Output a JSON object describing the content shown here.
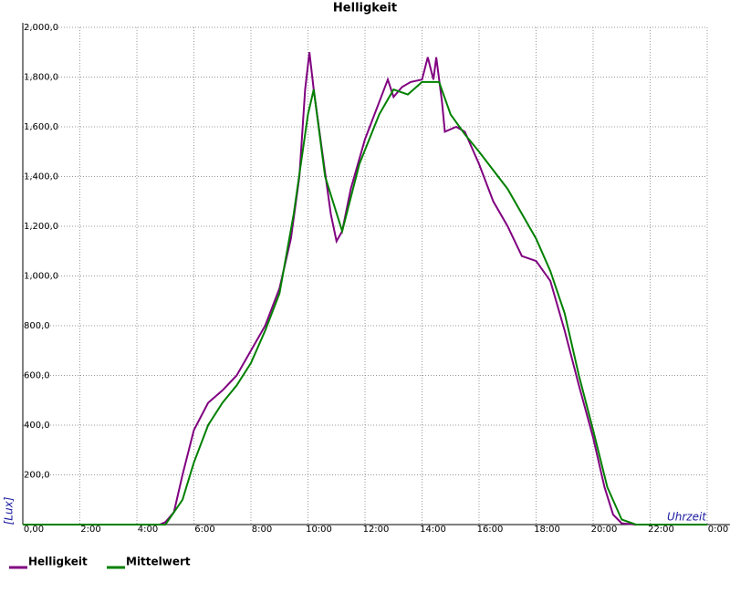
{
  "chart_data": {
    "type": "line",
    "title": "Helligkeit",
    "y_label": "[Lux]",
    "x_label": "Uhrzeit",
    "xlim": [
      0,
      24
    ],
    "ylim": [
      0,
      2000
    ],
    "grid": true,
    "xticks": [
      {
        "value": 0,
        "label": "0,00"
      },
      {
        "value": 2,
        "label": "2:00"
      },
      {
        "value": 4,
        "label": "4:00"
      },
      {
        "value": 6,
        "label": "6:00"
      },
      {
        "value": 8,
        "label": "8:00"
      },
      {
        "value": 10,
        "label": "10:00"
      },
      {
        "value": 12,
        "label": "12:00"
      },
      {
        "value": 14,
        "label": "14:00"
      },
      {
        "value": 16,
        "label": "16:00"
      },
      {
        "value": 18,
        "label": "18:00"
      },
      {
        "value": 20,
        "label": "20:00"
      },
      {
        "value": 22,
        "label": "22:00"
      },
      {
        "value": 24,
        "label": "0:00"
      }
    ],
    "yticks": [
      {
        "value": 200,
        "label": "200,0"
      },
      {
        "value": 400,
        "label": "400,0"
      },
      {
        "value": 600,
        "label": "600,0"
      },
      {
        "value": 800,
        "label": "800,0"
      },
      {
        "value": 1000,
        "label": "1,000,0"
      },
      {
        "value": 1200,
        "label": "1,200,0"
      },
      {
        "value": 1400,
        "label": "1,400,0"
      },
      {
        "value": 1600,
        "label": "1,600,0"
      },
      {
        "value": 1800,
        "label": "1,800,0"
      },
      {
        "value": 2000,
        "label": "2,000,0"
      }
    ],
    "series": [
      {
        "name": "Helligkeit",
        "color": "#800080",
        "x": [
          0,
          4.8,
          5.0,
          5.3,
          5.6,
          6.0,
          6.5,
          7.0,
          7.5,
          8.0,
          8.5,
          9.0,
          9.4,
          9.7,
          9.9,
          10.05,
          10.2,
          10.5,
          10.8,
          11.0,
          11.2,
          11.5,
          12.0,
          12.5,
          12.8,
          13.0,
          13.3,
          13.6,
          14.0,
          14.2,
          14.4,
          14.5,
          14.7,
          14.8,
          15.2,
          15.5,
          16.0,
          16.5,
          17.0,
          17.5,
          18.0,
          18.5,
          19.0,
          19.5,
          20.0,
          20.4,
          20.7,
          21.0,
          21.5,
          24
        ],
        "values": [
          0,
          0,
          10,
          50,
          200,
          380,
          490,
          540,
          600,
          700,
          800,
          950,
          1150,
          1400,
          1750,
          1900,
          1750,
          1500,
          1250,
          1140,
          1180,
          1350,
          1550,
          1700,
          1790,
          1720,
          1760,
          1780,
          1790,
          1880,
          1790,
          1880,
          1700,
          1580,
          1600,
          1580,
          1450,
          1300,
          1200,
          1080,
          1060,
          980,
          780,
          560,
          350,
          150,
          40,
          5,
          0,
          0
        ]
      },
      {
        "name": "Mittelwert",
        "color": "#008000",
        "x": [
          0,
          5.0,
          5.6,
          6.0,
          6.5,
          7.0,
          7.5,
          8.0,
          8.5,
          9.0,
          9.5,
          10.0,
          10.2,
          10.6,
          11.2,
          11.8,
          12.5,
          13.0,
          13.5,
          14.0,
          14.6,
          15.0,
          15.5,
          16.0,
          17.0,
          18.0,
          18.5,
          19.0,
          19.5,
          20.0,
          20.5,
          21.0,
          21.5,
          24
        ],
        "values": [
          0,
          0,
          100,
          250,
          400,
          490,
          560,
          650,
          780,
          930,
          1250,
          1650,
          1750,
          1400,
          1180,
          1450,
          1650,
          1750,
          1730,
          1780,
          1780,
          1650,
          1570,
          1500,
          1350,
          1150,
          1020,
          850,
          600,
          380,
          150,
          20,
          0,
          0
        ]
      }
    ]
  }
}
